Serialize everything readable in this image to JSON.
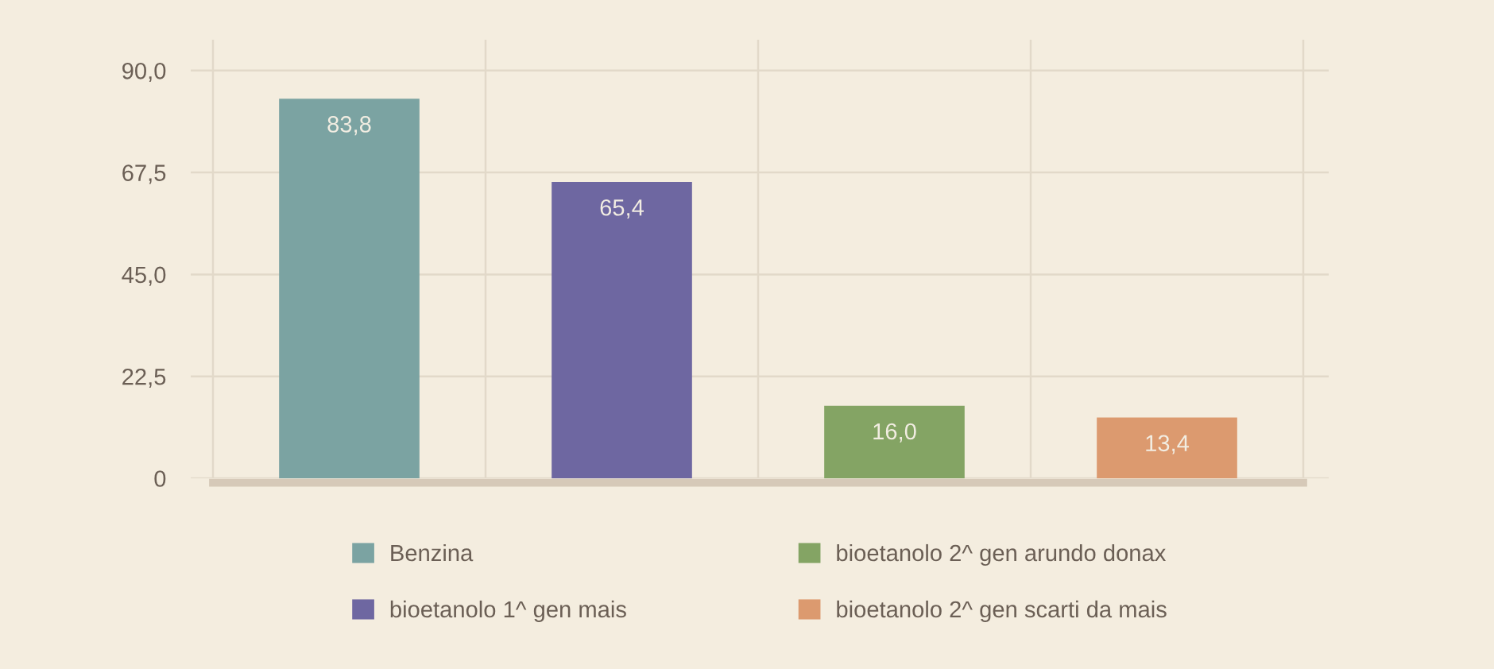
{
  "chart_data": {
    "type": "bar",
    "categories": [
      null,
      null,
      null,
      null
    ],
    "series": [
      {
        "name": "Benzina",
        "color": "#7ba3a2",
        "values": [
          83.8,
          null,
          null,
          null
        ],
        "value_labels": [
          "83,8",
          null,
          null,
          null
        ]
      },
      {
        "name": "bioetanolo 1^ gen mais",
        "color": "#6e67a1",
        "values": [
          null,
          65.4,
          null,
          null
        ],
        "value_labels": [
          null,
          "65,4",
          null,
          null
        ]
      },
      {
        "name": "bioetanolo 2^ gen arundo donax",
        "color": "#84a464",
        "values": [
          null,
          null,
          16.0,
          null
        ],
        "value_labels": [
          null,
          null,
          "16,0",
          null
        ]
      },
      {
        "name": "bioetanolo 2^ gen scarti da mais",
        "color": "#dc9a6f",
        "values": [
          null,
          null,
          null,
          13.4
        ],
        "value_labels": [
          null,
          null,
          null,
          "13,4"
        ]
      }
    ],
    "ylim": [
      0,
      96.8
    ],
    "yticks": [
      0,
      {
        "value": 22.5,
        "label": "22,5"
      },
      {
        "value": 45,
        "label": "45,0"
      },
      {
        "value": 67.5,
        "label": "67,5"
      },
      {
        "value": 90,
        "label": "90,0"
      }
    ],
    "grid": true,
    "legend": "bottom"
  }
}
